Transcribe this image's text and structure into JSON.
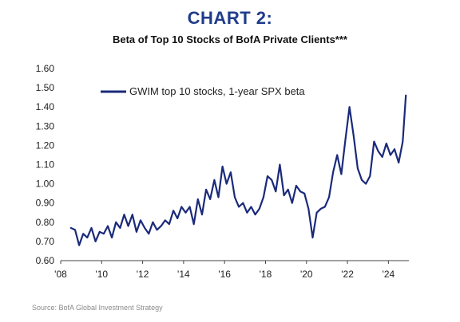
{
  "colors": {
    "title": "#1f3c8b",
    "series": "#1a2a7a",
    "source": "#8a8a8a"
  },
  "chart_data": {
    "type": "line",
    "title": "CHART 2:",
    "subtitle": "Beta of Top 10 Stocks of BofA Private Clients***",
    "source": "Source: BofA Global Investment Strategy",
    "xlabel": "",
    "ylabel": "",
    "xlim": [
      2008,
      2025
    ],
    "ylim": [
      0.6,
      1.6
    ],
    "x_ticks": [
      2008,
      2010,
      2012,
      2014,
      2016,
      2018,
      2020,
      2022,
      2024
    ],
    "x_tick_labels": [
      "'08",
      "'10",
      "'12",
      "'14",
      "'16",
      "'18",
      "'20",
      "'22",
      "'24"
    ],
    "y_ticks": [
      0.6,
      0.7,
      0.8,
      0.9,
      1.0,
      1.1,
      1.2,
      1.3,
      1.4,
      1.5,
      1.6
    ],
    "y_tick_labels": [
      "0.60",
      "0.70",
      "0.80",
      "0.90",
      "1.00",
      "1.10",
      "1.20",
      "1.30",
      "1.40",
      "1.50",
      "1.60"
    ],
    "grid": false,
    "legend_position": "top-left",
    "series": [
      {
        "name": "GWIM top 10 stocks, 1-year SPX beta",
        "x": [
          2008.5,
          2008.7,
          2008.9,
          2009.1,
          2009.3,
          2009.5,
          2009.7,
          2009.9,
          2010.1,
          2010.3,
          2010.5,
          2010.7,
          2010.9,
          2011.1,
          2011.3,
          2011.5,
          2011.7,
          2011.9,
          2012.1,
          2012.3,
          2012.5,
          2012.7,
          2012.9,
          2013.1,
          2013.3,
          2013.5,
          2013.7,
          2013.9,
          2014.1,
          2014.3,
          2014.5,
          2014.7,
          2014.9,
          2015.1,
          2015.3,
          2015.5,
          2015.7,
          2015.9,
          2016.1,
          2016.3,
          2016.5,
          2016.7,
          2016.9,
          2017.1,
          2017.3,
          2017.5,
          2017.7,
          2017.9,
          2018.1,
          2018.3,
          2018.5,
          2018.7,
          2018.9,
          2019.1,
          2019.3,
          2019.5,
          2019.7,
          2019.9,
          2020.1,
          2020.3,
          2020.5,
          2020.7,
          2020.9,
          2021.1,
          2021.3,
          2021.5,
          2021.7,
          2021.9,
          2022.1,
          2022.3,
          2022.5,
          2022.7,
          2022.9,
          2023.1,
          2023.3,
          2023.5,
          2023.7,
          2023.9,
          2024.1,
          2024.3,
          2024.5,
          2024.7,
          2024.85
        ],
        "values": [
          0.77,
          0.76,
          0.68,
          0.74,
          0.72,
          0.77,
          0.7,
          0.75,
          0.74,
          0.78,
          0.72,
          0.8,
          0.77,
          0.84,
          0.78,
          0.84,
          0.75,
          0.81,
          0.77,
          0.74,
          0.8,
          0.76,
          0.78,
          0.81,
          0.79,
          0.86,
          0.82,
          0.88,
          0.85,
          0.88,
          0.79,
          0.92,
          0.84,
          0.97,
          0.92,
          1.02,
          0.93,
          1.09,
          1.0,
          1.06,
          0.93,
          0.88,
          0.9,
          0.85,
          0.88,
          0.84,
          0.87,
          0.93,
          1.04,
          1.02,
          0.96,
          1.1,
          0.94,
          0.97,
          0.9,
          0.99,
          0.96,
          0.95,
          0.87,
          0.72,
          0.85,
          0.87,
          0.88,
          0.93,
          1.06,
          1.15,
          1.05,
          1.23,
          1.4,
          1.25,
          1.08,
          1.02,
          1.0,
          1.04,
          1.22,
          1.17,
          1.14,
          1.21,
          1.15,
          1.18,
          1.11,
          1.22,
          1.46
        ]
      }
    ]
  }
}
